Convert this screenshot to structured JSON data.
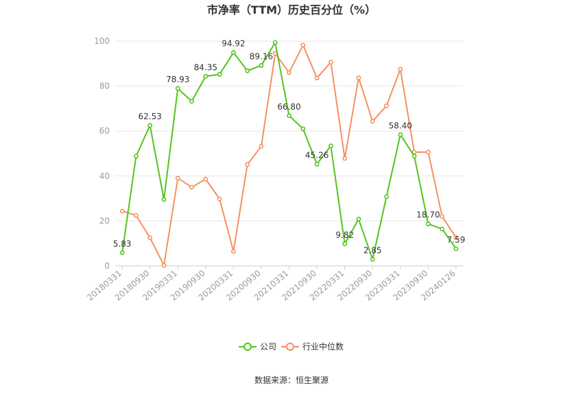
{
  "chart_data": {
    "type": "line",
    "title": "市净率（TTM）历史百分位（%）",
    "xlabel": "",
    "ylabel": "",
    "ylim": [
      0,
      100
    ],
    "yticks": [
      0,
      20,
      40,
      60,
      80,
      100
    ],
    "x": [
      "20180331",
      "20180630",
      "20180930",
      "20181231",
      "20190331",
      "20190630",
      "20190930",
      "20191231",
      "20200331",
      "20200630",
      "20200930",
      "20201231",
      "20210331",
      "20210630",
      "20210930",
      "20211231",
      "20220331",
      "20220630",
      "20220930",
      "20221231",
      "20230331",
      "20230630",
      "20230930",
      "20231231",
      "20240126"
    ],
    "xtick_labels": [
      "20180331",
      "20180930",
      "20190331",
      "20190930",
      "20200331",
      "20200930",
      "20210331",
      "20210930",
      "20220331",
      "20220930",
      "20230331",
      "20230930",
      "20240126"
    ],
    "xtick_indices": [
      0,
      2,
      4,
      6,
      8,
      10,
      12,
      14,
      16,
      18,
      20,
      22,
      24
    ],
    "grid": true,
    "legend_position": "bottom",
    "series": [
      {
        "name": "公司",
        "color": "#52c41a",
        "values": [
          5.83,
          48.8,
          62.53,
          29.5,
          78.93,
          73.2,
          84.35,
          85.2,
          94.92,
          86.8,
          89.16,
          99.4,
          66.8,
          61.0,
          45.26,
          53.4,
          9.82,
          20.8,
          2.85,
          30.8,
          58.4,
          48.8,
          18.7,
          16.4,
          7.59
        ],
        "labels": [
          "5.83",
          null,
          "62.53",
          null,
          "78.93",
          null,
          "84.35",
          null,
          "94.92",
          null,
          "89.16",
          null,
          "66.80",
          null,
          "45.26",
          null,
          "9.82",
          null,
          "2.85",
          null,
          "58.40",
          null,
          "18.70",
          null,
          "7.59"
        ]
      },
      {
        "name": "行业中位数",
        "color": "#f5905f",
        "values": [
          24.4,
          22.4,
          12.5,
          0.2,
          39.0,
          35.0,
          38.6,
          29.8,
          6.4,
          45.1,
          53.2,
          94.5,
          86.0,
          98.2,
          83.6,
          90.6,
          47.8,
          83.7,
          64.3,
          71.2,
          87.5,
          50.6,
          50.6,
          22.0,
          12.6
        ]
      }
    ]
  },
  "source": "数据来源：恒生聚源"
}
